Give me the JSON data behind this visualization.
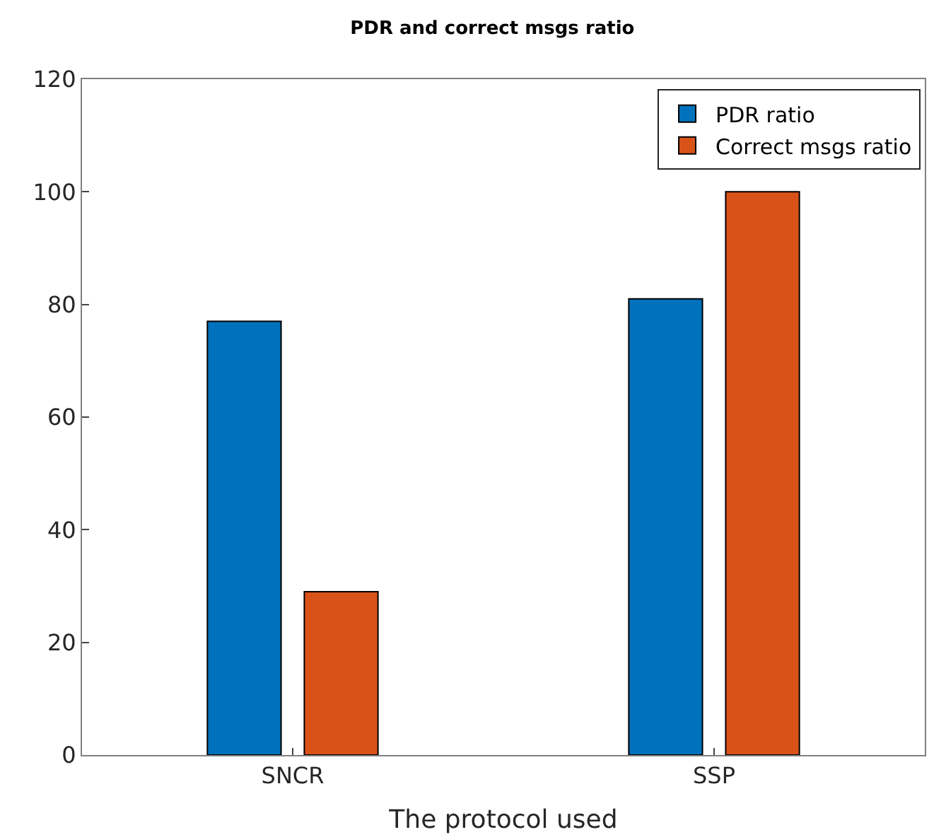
{
  "chart_data": {
    "type": "bar",
    "title": "PDR and correct msgs ratio",
    "xlabel": "The protocol used",
    "categories": [
      "SNCR",
      "SSP"
    ],
    "series": [
      {
        "name": "PDR ratio",
        "color": "#0072bd",
        "values": [
          77,
          81
        ]
      },
      {
        "name": "Correct msgs ratio",
        "color": "#d95319",
        "values": [
          29,
          100
        ]
      }
    ],
    "ylim": [
      0,
      120
    ],
    "yticks": [
      0,
      20,
      40,
      60,
      80,
      100,
      120
    ],
    "grid": false,
    "legend": "top right"
  }
}
